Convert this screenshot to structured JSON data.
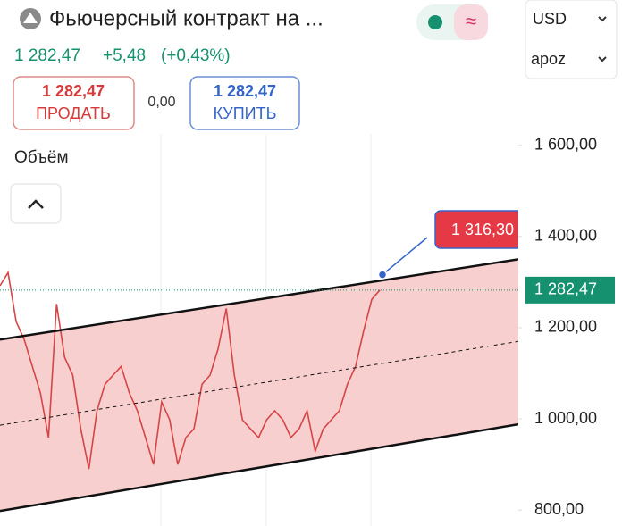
{
  "header": {
    "title": "Фьючерсный контракт на ...",
    "currency": "USD",
    "timeframe": "apoz"
  },
  "quote": {
    "price": "1 282,47",
    "change": "+5,48",
    "change_pct": "(+0,43%)"
  },
  "trade": {
    "sell_price": "1 282,47",
    "sell_label": "ПРОДАТЬ",
    "spread": "0,00",
    "buy_price": "1 282,47",
    "buy_label": "КУПИТЬ"
  },
  "volume_label": "Объём",
  "chart_data": {
    "type": "line",
    "values": [
      1292,
      1321,
      1213,
      1174,
      1115,
      1057,
      959,
      1252,
      1135,
      1096,
      978,
      890,
      1018,
      1076,
      1096,
      1115,
      1057,
      1018,
      959,
      900,
      1037,
      998,
      900,
      959,
      978,
      1076,
      1096,
      1154,
      1242,
      1096,
      998,
      978,
      959,
      998,
      1018,
      998,
      959,
      978,
      1018,
      929,
      978,
      998,
      1018,
      1076,
      1115,
      1193,
      1262,
      1282.47
    ],
    "color": "#d64545",
    "ylim": [
      765,
      1625
    ],
    "yticks": [
      {
        "value": 800,
        "label": "800,00"
      },
      {
        "value": 1000,
        "label": "1 000,00"
      },
      {
        "value": 1200,
        "label": "1 200,00"
      },
      {
        "value": 1400,
        "label": "1 400,00"
      },
      {
        "value": 1600,
        "label": "1 600,00"
      }
    ],
    "channel": {
      "upper": [
        1174,
        1350
      ],
      "middle": [
        986,
        1170
      ],
      "lower": [
        798,
        988
      ],
      "fill": "#f7cfcf"
    },
    "current_price": {
      "value": 1282.47,
      "label": "1 282,47",
      "color": "#16916f"
    },
    "annotation": {
      "value": 1316.3,
      "label": "1 316,30",
      "color": "#e53945"
    }
  }
}
